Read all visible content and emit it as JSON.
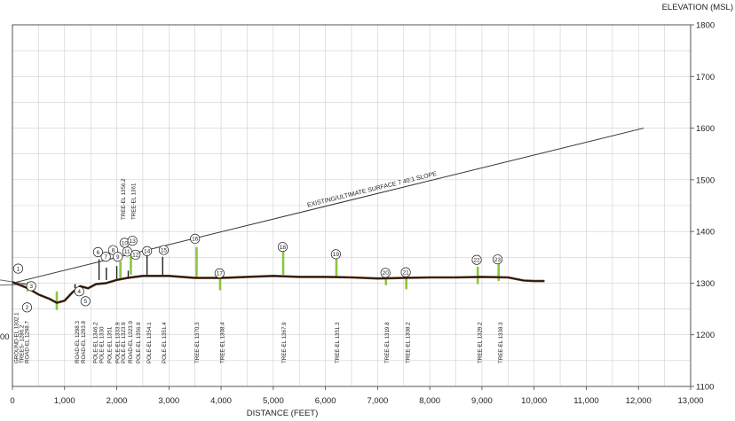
{
  "chart_data": {
    "type": "line",
    "xlabel": "DISTANCE (FEET)",
    "ylabel": "ELEVATION (MSL)",
    "xlim": [
      0,
      13000
    ],
    "ylim": [
      1100,
      1800
    ],
    "x_ticks": [
      0,
      1000,
      2000,
      3000,
      4000,
      5000,
      6000,
      7000,
      8000,
      9000,
      10000,
      11000,
      12000,
      13000
    ],
    "x_tick_labels": [
      "0",
      "1,000",
      "2,000",
      "3,000",
      "4,000",
      "5,000",
      "6,000",
      "7,000",
      "8,000",
      "9,000",
      "10,000",
      "11,000",
      "12,000",
      "13,000"
    ],
    "y_ticks": [
      1100,
      1200,
      1300,
      1400,
      1500,
      1600,
      1700,
      1800
    ],
    "y_tick_labels": [
      "1100",
      "1200",
      "1300",
      "1400",
      "1500",
      "1600",
      "1700",
      "1800"
    ],
    "left_partial_label": "00",
    "grid": true,
    "surface": {
      "label": "EXISTING/ULTIMATE SURFACE 7 40:1 SLOPE",
      "x": [
        0,
        12100
      ],
      "y": [
        1300,
        1600
      ]
    },
    "ground_profile": {
      "x": [
        0,
        300,
        500,
        700,
        850,
        1000,
        1150,
        1300,
        1450,
        1600,
        1800,
        2000,
        2200,
        2500,
        2800,
        3000,
        3500,
        4000,
        4500,
        5000,
        5500,
        6000,
        6500,
        7000,
        7500,
        8000,
        8500,
        9000,
        9500,
        9800,
        10000,
        10200
      ],
      "y": [
        1302,
        1290,
        1278,
        1270,
        1262,
        1266,
        1282,
        1294,
        1290,
        1298,
        1300,
        1306,
        1310,
        1314,
        1314,
        1314,
        1310,
        1310,
        1312,
        1314,
        1312,
        1312,
        1311,
        1309,
        1310,
        1311,
        1311,
        1312,
        1311,
        1305,
        1304,
        1304
      ]
    },
    "markers": [
      {
        "id": "1",
        "x": 110,
        "y": 1328
      },
      {
        "id": "2",
        "x": 280,
        "y": 1253
      },
      {
        "id": "3",
        "x": 360,
        "y": 1294
      },
      {
        "id": "4",
        "x": 1280,
        "y": 1284
      },
      {
        "id": "5",
        "x": 1400,
        "y": 1265
      },
      {
        "id": "6",
        "x": 1640,
        "y": 1360
      },
      {
        "id": "7",
        "x": 1790,
        "y": 1351
      },
      {
        "id": "8",
        "x": 1930,
        "y": 1364
      },
      {
        "id": "9",
        "x": 2020,
        "y": 1351
      },
      {
        "id": "10",
        "x": 2150,
        "y": 1378
      },
      {
        "id": "11",
        "x": 2200,
        "y": 1361
      },
      {
        "id": "12",
        "x": 2360,
        "y": 1355
      },
      {
        "id": "13",
        "x": 2300,
        "y": 1382
      },
      {
        "id": "14",
        "x": 2580,
        "y": 1362
      },
      {
        "id": "15",
        "x": 2900,
        "y": 1364
      },
      {
        "id": "16",
        "x": 3500,
        "y": 1386
      },
      {
        "id": "17",
        "x": 3970,
        "y": 1319
      },
      {
        "id": "18",
        "x": 5180,
        "y": 1370
      },
      {
        "id": "19",
        "x": 6200,
        "y": 1356
      },
      {
        "id": "20",
        "x": 7150,
        "y": 1320
      },
      {
        "id": "21",
        "x": 7540,
        "y": 1321
      },
      {
        "id": "22",
        "x": 8900,
        "y": 1345
      },
      {
        "id": "23",
        "x": 9300,
        "y": 1346
      }
    ],
    "trees": [
      {
        "x": 290,
        "y1": 1286,
        "y2": 1300
      },
      {
        "x": 850,
        "y1": 1250,
        "y2": 1282
      },
      {
        "x": 2070,
        "y1": 1310,
        "y2": 1340
      },
      {
        "x": 2270,
        "y1": 1318,
        "y2": 1350
      },
      {
        "x": 3530,
        "y1": 1314,
        "y2": 1368
      },
      {
        "x": 3980,
        "y1": 1288,
        "y2": 1308
      },
      {
        "x": 5190,
        "y1": 1318,
        "y2": 1368
      },
      {
        "x": 6210,
        "y1": 1314,
        "y2": 1351
      },
      {
        "x": 7160,
        "y1": 1298,
        "y2": 1320
      },
      {
        "x": 7550,
        "y1": 1290,
        "y2": 1308
      },
      {
        "x": 8920,
        "y1": 1300,
        "y2": 1330
      },
      {
        "x": 9320,
        "y1": 1306,
        "y2": 1338
      }
    ],
    "poles": [
      {
        "x": 1660,
        "y1": 1306,
        "y2": 1346
      },
      {
        "x": 1800,
        "y1": 1306,
        "y2": 1330
      },
      {
        "x": 2000,
        "y1": 1306,
        "y2": 1333
      },
      {
        "x": 2220,
        "y1": 1308,
        "y2": 1324
      },
      {
        "x": 2580,
        "y1": 1312,
        "y2": 1354
      },
      {
        "x": 2880,
        "y1": 1314,
        "y2": 1351
      }
    ],
    "road_marks": [
      {
        "x": 360,
        "y1": 1290,
        "y2": 1299
      },
      {
        "x": 1200,
        "y1": 1290,
        "y2": 1298
      },
      {
        "x": 1330,
        "y1": 1286,
        "y2": 1294
      }
    ],
    "lower_labels": [
      {
        "x": 80,
        "text": "GROUND-EL 1302.1"
      },
      {
        "x": 175,
        "text": "TREES- 1286.2"
      },
      {
        "x": 285,
        "text": "ROAD-EL 1298.7"
      },
      {
        "x": 1240,
        "text": "ROAD-EL 1298.3"
      },
      {
        "x": 1360,
        "text": "ROAD-EL 1293.8"
      },
      {
        "x": 1590,
        "text": "POLE-EL 1346.2"
      },
      {
        "x": 1710,
        "text": "POLE-EL 1330"
      },
      {
        "x": 1860,
        "text": "POLE-EL 1351"
      },
      {
        "x": 2020,
        "text": "POLE-EL 1333.9"
      },
      {
        "x": 2130,
        "text": "POLE-EL 1323.9"
      },
      {
        "x": 2260,
        "text": "ROAD-EL 1323.9"
      },
      {
        "x": 2420,
        "text": "POLE-EL 1356.9"
      },
      {
        "x": 2620,
        "text": "POLE-EL 1354.1"
      },
      {
        "x": 2910,
        "text": "POLE-EL 1351.4"
      },
      {
        "x": 3540,
        "text": "TREE-EL 1370.3"
      },
      {
        "x": 4020,
        "text": "TREE-EL 1308.4"
      },
      {
        "x": 5210,
        "text": "TREE-EL 1367.9"
      },
      {
        "x": 6230,
        "text": "TREE-EL 1351.3"
      },
      {
        "x": 7180,
        "text": "TREE-EL 1319.8"
      },
      {
        "x": 7580,
        "text": "TREE-EL 1308.2"
      },
      {
        "x": 8960,
        "text": "TREE-EL 1329.2"
      },
      {
        "x": 9360,
        "text": "TREE-EL 1338.3"
      }
    ],
    "upper_labels": [
      {
        "x": 2130,
        "text": "TREE-EL 1356.2"
      },
      {
        "x": 2320,
        "text": "TREE-EL 1361"
      }
    ]
  }
}
